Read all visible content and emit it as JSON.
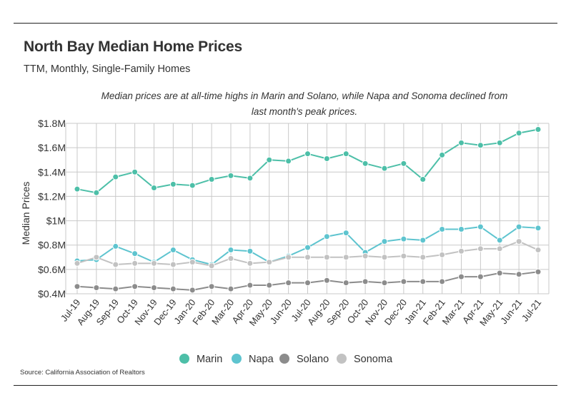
{
  "header": {
    "title": "North Bay Median Home Prices",
    "subtitle": "TTM, Monthly, Single-Family Homes"
  },
  "annotation": "Median prices are at all-time highs in Marin and Solano, while Napa and Sonoma declined from last month's peak prices.",
  "source": "Source:  California Association of Realtors",
  "chart_data": {
    "type": "line",
    "title": "North Bay Median Home Prices",
    "subtitle": "TTM, Monthly, Single-Family Homes",
    "xlabel": "",
    "ylabel": "Median Prices",
    "ylim": [
      0.4,
      1.8
    ],
    "grid": true,
    "legend_position": "bottom-center",
    "y_ticks": [
      {
        "value": 0.4,
        "label": "$0.4M"
      },
      {
        "value": 0.6,
        "label": "$0.6M"
      },
      {
        "value": 0.8,
        "label": "$0.8M"
      },
      {
        "value": 1.0,
        "label": "$1M"
      },
      {
        "value": 1.2,
        "label": "$1.2M"
      },
      {
        "value": 1.4,
        "label": "$1.4M"
      },
      {
        "value": 1.6,
        "label": "$1.6M"
      },
      {
        "value": 1.8,
        "label": "$1.8M"
      }
    ],
    "categories": [
      "Jul-19",
      "Aug-19",
      "Sep-19",
      "Oct-19",
      "Nov-19",
      "Dec-19",
      "Jan-20",
      "Feb-20",
      "Mar-20",
      "Apr-20",
      "May-20",
      "Jun-20",
      "Jul-20",
      "Aug-20",
      "Sep-20",
      "Oct-20",
      "Nov-20",
      "Dec-20",
      "Jan-21",
      "Feb-21",
      "Mar-21",
      "Apr-21",
      "May-21",
      "Jun-21",
      "Jul-21"
    ],
    "series": [
      {
        "name": "Marin",
        "color": "#4dbfa8",
        "values": [
          1.26,
          1.23,
          1.36,
          1.4,
          1.27,
          1.3,
          1.29,
          1.34,
          1.37,
          1.35,
          1.5,
          1.49,
          1.55,
          1.51,
          1.55,
          1.47,
          1.43,
          1.47,
          1.34,
          1.54,
          1.64,
          1.62,
          1.64,
          1.72,
          1.75
        ]
      },
      {
        "name": "Napa",
        "color": "#5ec4cf",
        "values": [
          0.67,
          0.68,
          0.79,
          0.73,
          0.66,
          0.76,
          0.68,
          0.64,
          0.76,
          0.75,
          0.66,
          0.71,
          0.78,
          0.87,
          0.9,
          0.74,
          0.83,
          0.85,
          0.84,
          0.93,
          0.93,
          0.95,
          0.84,
          0.95,
          0.94
        ]
      },
      {
        "name": "Solano",
        "color": "#8c8c8c",
        "values": [
          0.46,
          0.45,
          0.44,
          0.46,
          0.45,
          0.44,
          0.43,
          0.46,
          0.44,
          0.47,
          0.47,
          0.49,
          0.49,
          0.51,
          0.49,
          0.5,
          0.49,
          0.5,
          0.5,
          0.5,
          0.54,
          0.54,
          0.57,
          0.56,
          0.58
        ]
      },
      {
        "name": "Sonoma",
        "color": "#c2c2c2",
        "values": [
          0.65,
          0.7,
          0.64,
          0.65,
          0.65,
          0.64,
          0.66,
          0.63,
          0.69,
          0.65,
          0.66,
          0.7,
          0.7,
          0.7,
          0.7,
          0.71,
          0.7,
          0.71,
          0.7,
          0.72,
          0.75,
          0.77,
          0.77,
          0.83,
          0.76
        ]
      }
    ]
  }
}
